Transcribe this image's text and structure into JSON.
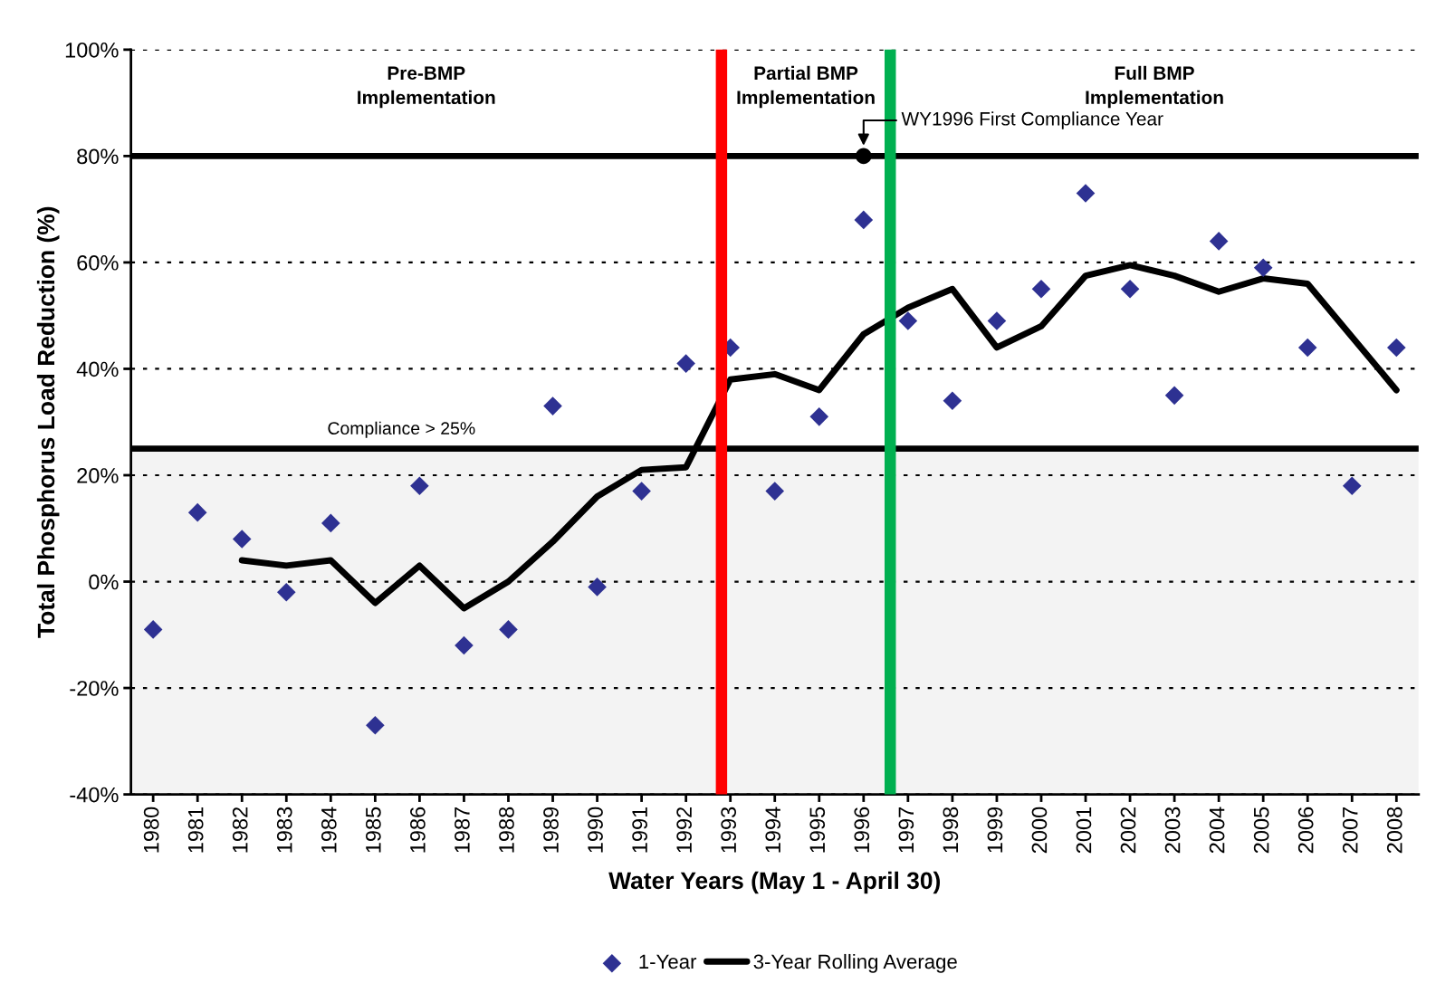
{
  "chart_data": {
    "type": "scatter",
    "xlabel": "Water Years (May 1 - April 30)",
    "ylabel": "Total Phosphorus Load Reduction (%)",
    "x": [
      1980,
      1981,
      1982,
      1983,
      1984,
      1985,
      1986,
      1987,
      1988,
      1989,
      1990,
      1991,
      1992,
      1993,
      1994,
      1995,
      1996,
      1997,
      1998,
      1999,
      2000,
      2001,
      2002,
      2003,
      2004,
      2005,
      2006,
      2007,
      2008
    ],
    "series": [
      {
        "name": "1-Year",
        "marker": "diamond",
        "color": "#2e3192",
        "values": [
          -9,
          13,
          8,
          -2,
          11,
          -27,
          18,
          -12,
          -9,
          33,
          -1,
          17,
          41,
          44,
          17,
          31,
          68,
          49,
          34,
          49,
          55,
          73,
          55,
          35,
          64,
          59,
          44,
          18,
          44
        ]
      },
      {
        "name": "3-Year Rolling Average",
        "type": "line",
        "marker": "none",
        "color": "#000000",
        "values": [
          null,
          null,
          4,
          3,
          4,
          -4,
          3,
          -5,
          0,
          7.5,
          16,
          21,
          21.5,
          38,
          39,
          36,
          46.5,
          51.5,
          55,
          44,
          48,
          57.5,
          59.5,
          57.5,
          54.5,
          57,
          56,
          46,
          36
        ]
      },
      {
        "type": "scatter",
        "marker": "circle",
        "color": "#000000",
        "x": [
          1996
        ],
        "values": [
          80
        ]
      }
    ],
    "xlim": [
      1979.5,
      2008.5
    ],
    "xticks": [
      {
        "value": 1980,
        "label": "1980"
      },
      {
        "value": 1981,
        "label": "1981"
      },
      {
        "value": 1982,
        "label": "1982"
      },
      {
        "value": 1983,
        "label": "1983"
      },
      {
        "value": 1984,
        "label": "1984"
      },
      {
        "value": 1985,
        "label": "1985"
      },
      {
        "value": 1986,
        "label": "1986"
      },
      {
        "value": 1987,
        "label": "1987"
      },
      {
        "value": 1988,
        "label": "1988"
      },
      {
        "value": 1989,
        "label": "1989"
      },
      {
        "value": 1990,
        "label": "1990"
      },
      {
        "value": 1991,
        "label": "1991"
      },
      {
        "value": 1992,
        "label": "1992"
      },
      {
        "value": 1993,
        "label": "1993"
      },
      {
        "value": 1994,
        "label": "1994"
      },
      {
        "value": 1995,
        "label": "1995"
      },
      {
        "value": 1996,
        "label": "1996"
      },
      {
        "value": 1997,
        "label": "1997"
      },
      {
        "value": 1998,
        "label": "1998"
      },
      {
        "value": 1999,
        "label": "1999"
      },
      {
        "value": 2000,
        "label": "2000"
      },
      {
        "value": 2001,
        "label": "2001"
      },
      {
        "value": 2002,
        "label": "2002"
      },
      {
        "value": 2003,
        "label": "2003"
      },
      {
        "value": 2004,
        "label": "2004"
      },
      {
        "value": 2005,
        "label": "2005"
      },
      {
        "value": 2006,
        "label": "2006"
      },
      {
        "value": 2007,
        "label": "2007"
      },
      {
        "value": 2008,
        "label": "2008"
      }
    ],
    "ylim": [
      -40,
      100
    ],
    "yticks": [
      {
        "value": -40,
        "label": "-40%"
      },
      {
        "value": -20,
        "label": "-20%"
      },
      {
        "value": 0,
        "label": "0%"
      },
      {
        "value": 20,
        "label": "20%"
      },
      {
        "value": 40,
        "label": "40%"
      },
      {
        "value": 60,
        "label": "60%"
      },
      {
        "value": 80,
        "label": "80%"
      },
      {
        "value": 100,
        "label": "100%"
      }
    ],
    "grid": "y",
    "line_style": "solid",
    "legend": "bottom",
    "ref_lines": [
      {
        "axis": "y",
        "value": 25,
        "label": "Compliance > 25%",
        "color": "#000000"
      },
      {
        "axis": "y",
        "value": 80,
        "color": "#000000"
      },
      {
        "axis": "x",
        "value": 1992.8,
        "color": "#ff0000"
      },
      {
        "axis": "x",
        "value": 1996.6,
        "color": "#00b050"
      }
    ],
    "bands": [
      {
        "axis": "y",
        "from": -40,
        "to": 25,
        "color": "#f3f3f3"
      }
    ],
    "annotations": [
      "Pre-BMP\nImplementation",
      "Partial BMP\nImplementation",
      "Full BMP\nImplementation",
      {
        "text": "WY1996 First Compliance Year",
        "x": 1996,
        "y": 80
      }
    ]
  }
}
